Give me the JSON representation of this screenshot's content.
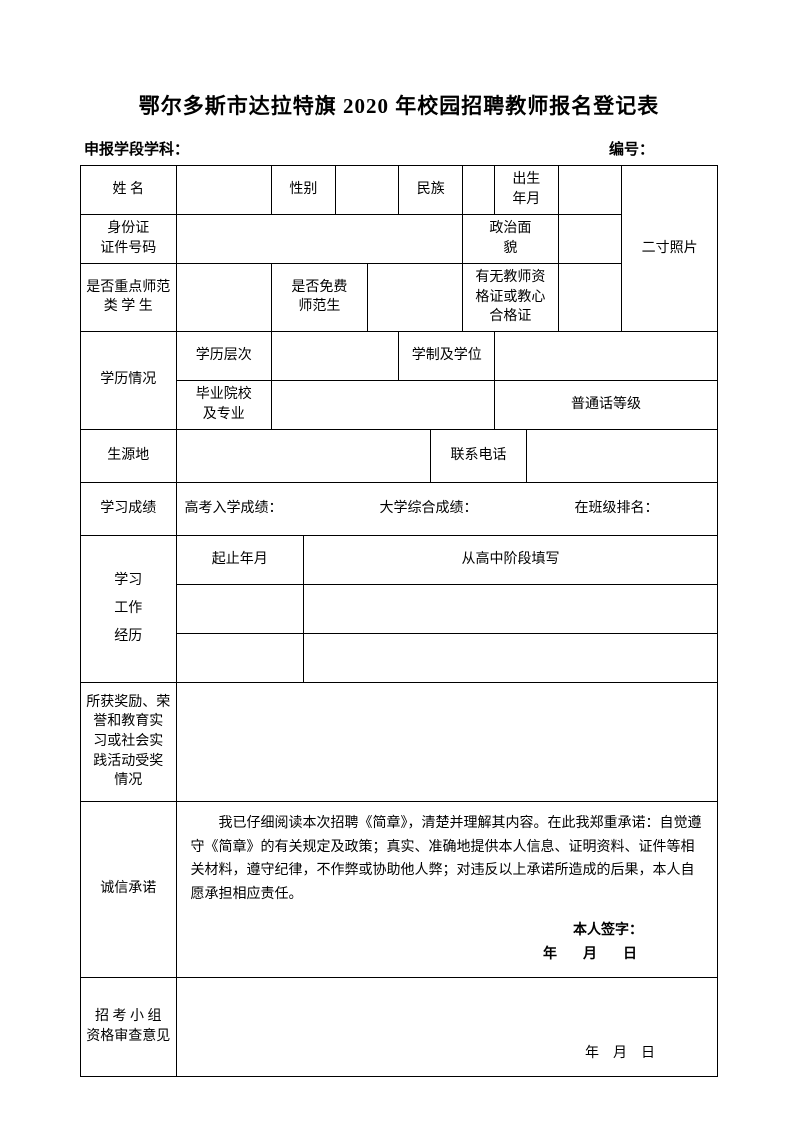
{
  "title": "鄂尔多斯市达拉特旗 2020 年校园招聘教师报名登记表",
  "subhead": {
    "left": "申报学段学科：",
    "right": "编号："
  },
  "labels": {
    "name": "姓 名",
    "gender": "性别",
    "ethnic": "民族",
    "birth": "出生\n年月",
    "idno": "身份证\n证件号码",
    "political": "政治面\n貌",
    "keynormal": "是否重点师范\n类 学 生",
    "freenormal": "是否免费\n师范生",
    "teachcert": "有无教师资\n格证或教心\n合格证",
    "photo": "二寸照片",
    "edu": "学历情况",
    "edulevel": "学历层次",
    "schoolsys": "学制及学位",
    "gradschool": "毕业院校\n及专业",
    "putonghua": "普通话等级",
    "origin": "生源地",
    "phone": "联系电话",
    "scores": "学习成绩",
    "gaokao": "高考入学成绩：",
    "univscore": "大学综合成绩：",
    "rank": "在班级排名：",
    "experience": "学习\n工作\n经历",
    "period": "起止年月",
    "fromhs": "从高中阶段填写",
    "awards": "所获奖励、荣\n誉和教育实\n习或社会实\n践活动受奖\n情况",
    "commit": "诚信承诺",
    "commit_text": "我已仔细阅读本次招聘《简章》，清楚并理解其内容。在此我郑重承诺：自觉遵守《简章》的有关规定及政策；真实、准确地提供本人信息、证明资料、证件等相关材料，遵守纪律，不作弊或协助他人弊；对违反以上承诺所造成的后果，本人自愿承担相应责任。",
    "sign": "本人签字：",
    "date": "年　月　日",
    "review": "招 考 小 组\n资格审查意见",
    "review_date": "年　月　日"
  }
}
